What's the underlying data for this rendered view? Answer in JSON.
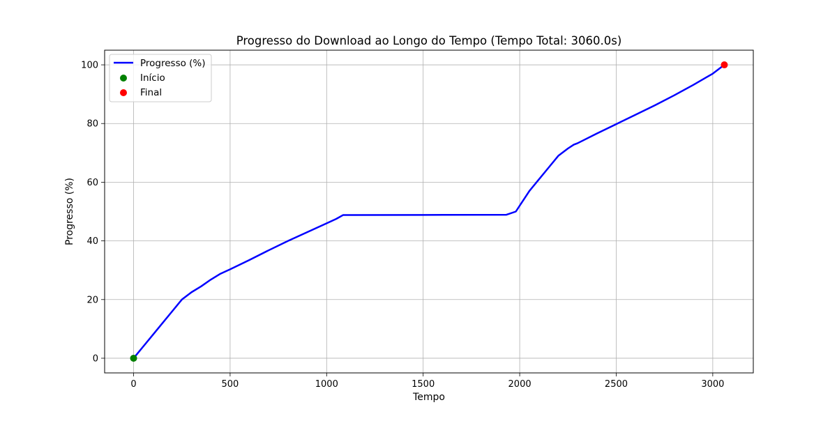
{
  "chart_data": {
    "type": "line",
    "title": "Progresso do Download ao Longo do Tempo (Tempo Total: 3060.0s)",
    "xlabel": "Tempo",
    "ylabel": "Progresso (%)",
    "xlim": [
      -150,
      3210
    ],
    "ylim": [
      -5,
      105
    ],
    "xticks": [
      0,
      500,
      1000,
      1500,
      2000,
      2500,
      3000
    ],
    "yticks": [
      0,
      20,
      40,
      60,
      80,
      100
    ],
    "grid": true,
    "legend_position": "top-left",
    "series": [
      {
        "name": "Progresso (%)",
        "kind": "line",
        "color": "#0000ff",
        "x": [
          0,
          50,
          100,
          150,
          200,
          250,
          300,
          350,
          400,
          450,
          500,
          600,
          700,
          800,
          900,
          1000,
          1050,
          1085,
          1500,
          1930,
          1980,
          2050,
          2100,
          2150,
          2200,
          2250,
          2280,
          2300,
          2400,
          2500,
          2600,
          2700,
          2800,
          2900,
          3000,
          3060
        ],
        "y": [
          0,
          4,
          8,
          12,
          16,
          20,
          22.5,
          24.5,
          26.8,
          28.8,
          30.3,
          33.5,
          36.8,
          40,
          43,
          46,
          47.5,
          48.8,
          48.85,
          48.9,
          50,
          57,
          61,
          65,
          69,
          71.5,
          72.8,
          73.3,
          76.6,
          79.8,
          83,
          86.2,
          89.6,
          93.2,
          97,
          100
        ]
      },
      {
        "name": "Início",
        "kind": "scatter",
        "color": "#008000",
        "x": [
          0
        ],
        "y": [
          0
        ]
      },
      {
        "name": "Final",
        "kind": "scatter",
        "color": "#ff0000",
        "x": [
          3060
        ],
        "y": [
          100
        ]
      }
    ]
  }
}
